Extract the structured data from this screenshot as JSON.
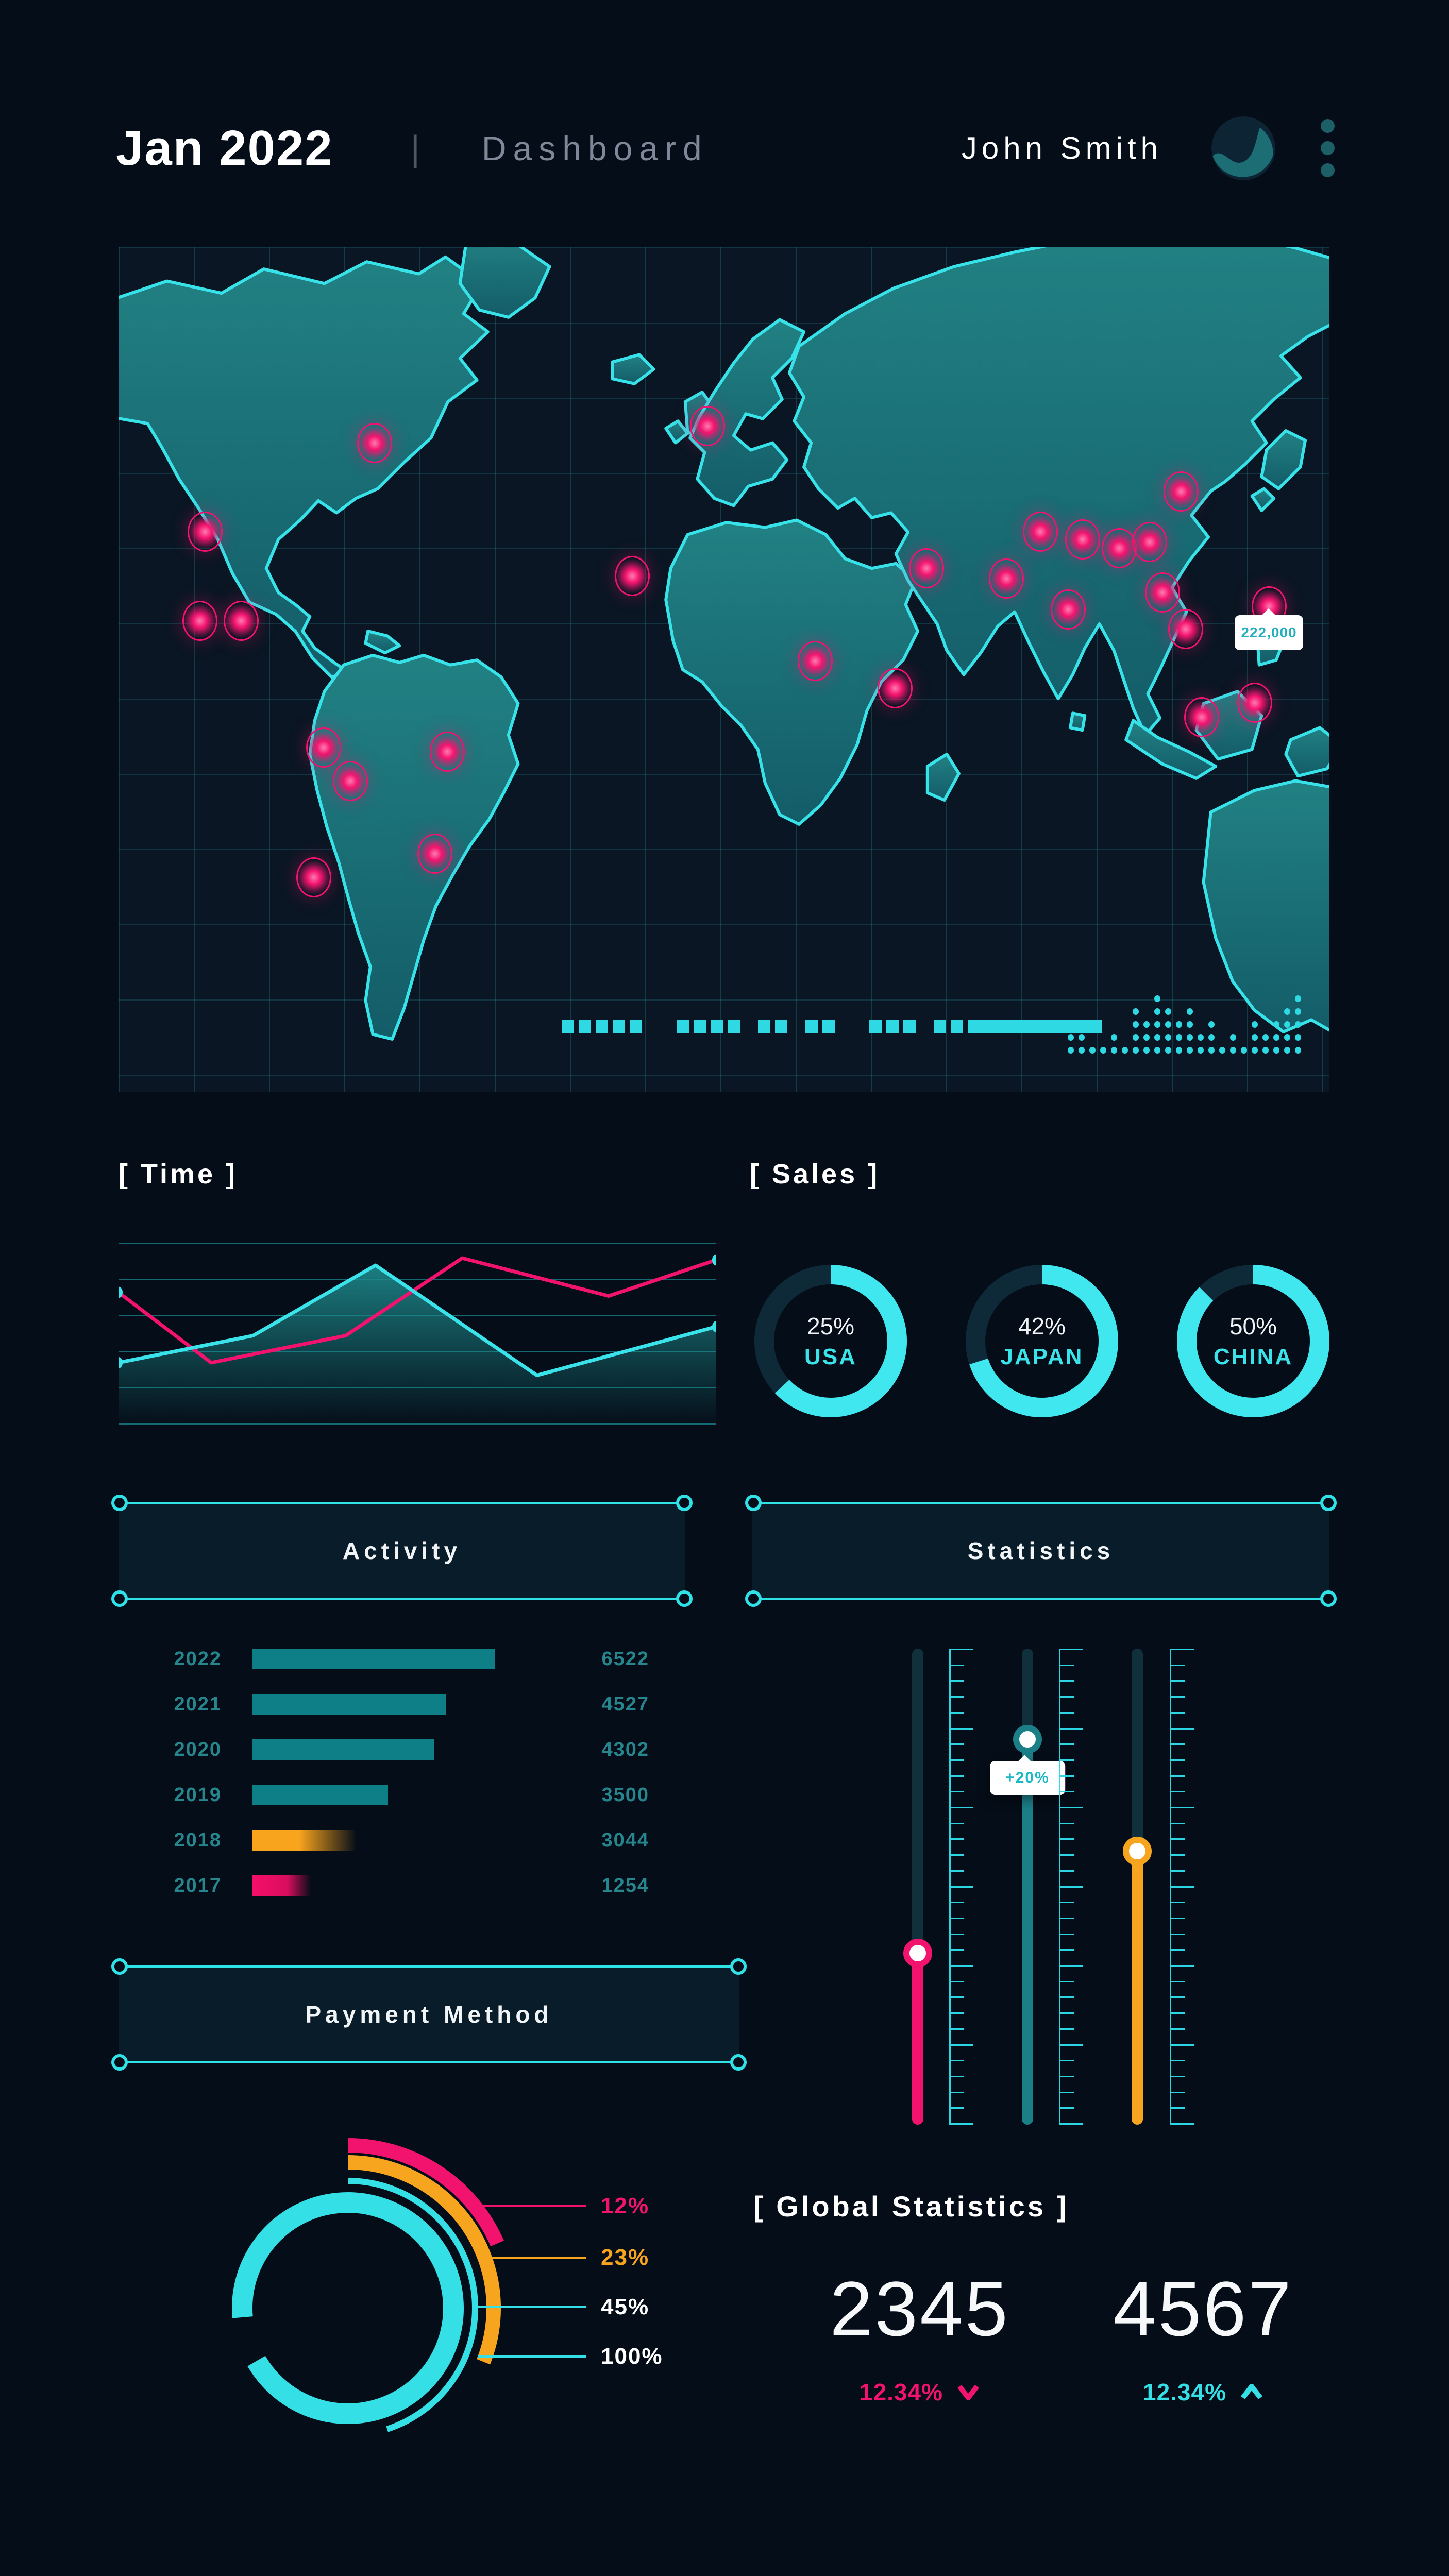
{
  "header": {
    "title": "Jan 2022",
    "divider": "|",
    "subtitle": "Dashboard",
    "user_name": "John Smith"
  },
  "sections": {
    "time": "[ Time ]",
    "sales": "[ Sales ]",
    "activity": "Activity",
    "statistics": "Statistics",
    "payment": "Payment Method",
    "global": "[ Global Statistics ]"
  },
  "map": {
    "tooltip_value": "222,000",
    "markers": [
      {
        "x": 21,
        "y": 23
      },
      {
        "x": 7,
        "y": 33.5
      },
      {
        "x": 6.6,
        "y": 44
      },
      {
        "x": 10,
        "y": 44
      },
      {
        "x": 16.8,
        "y": 59
      },
      {
        "x": 19,
        "y": 63
      },
      {
        "x": 27,
        "y": 59.5
      },
      {
        "x": 26,
        "y": 71.6
      },
      {
        "x": 16,
        "y": 74.4
      },
      {
        "x": 48.5,
        "y": 21
      },
      {
        "x": 42.3,
        "y": 38.7
      },
      {
        "x": 57.4,
        "y": 48.8
      },
      {
        "x": 64,
        "y": 52
      },
      {
        "x": 66.6,
        "y": 37.8
      },
      {
        "x": 73.2,
        "y": 39
      },
      {
        "x": 78.3,
        "y": 42.7
      },
      {
        "x": 76,
        "y": 33.5
      },
      {
        "x": 79.5,
        "y": 34.4
      },
      {
        "x": 82.5,
        "y": 35.4
      },
      {
        "x": 85,
        "y": 34.7
      },
      {
        "x": 87.6,
        "y": 28.7
      },
      {
        "x": 86.1,
        "y": 40.7
      },
      {
        "x": 88,
        "y": 45
      },
      {
        "x": 89.3,
        "y": 55.4
      },
      {
        "x": 93.7,
        "y": 53.7
      },
      {
        "x": 94.9,
        "y": 42.3
      }
    ],
    "equalizer": [
      3,
      2,
      1,
      1,
      2,
      1,
      4,
      3,
      5,
      4,
      3,
      4,
      2,
      3,
      1,
      2,
      1,
      3,
      2,
      3,
      4,
      5
    ],
    "dash_pattern": [
      "d",
      "d",
      "d",
      "d",
      "d",
      "G",
      "d",
      "d",
      "d",
      "d",
      "g",
      "d",
      "d",
      "g",
      "d",
      "d",
      "G",
      "d",
      "d",
      "d",
      "g",
      "d",
      "d",
      "B"
    ]
  },
  "chart_data": [
    {
      "type": "line",
      "title": "Time",
      "gridlines": 6,
      "legend_position": "none",
      "note": "points are [x_pct, y_pct_from_top] of plot area",
      "series": [
        {
          "name": "pink-line",
          "color": "#f2136e",
          "points": [
            [
              0,
              27
            ],
            [
              15.5,
              66
            ],
            [
              38,
              51
            ],
            [
              57.5,
              8
            ],
            [
              82,
              29
            ],
            [
              100,
              9
            ]
          ]
        },
        {
          "name": "cyan-area-line",
          "color": "#3ae3ea",
          "area": true,
          "points": [
            [
              0,
              66
            ],
            [
              22.5,
              51
            ],
            [
              43,
              12
            ],
            [
              70,
              73
            ],
            [
              100,
              46
            ]
          ]
        }
      ]
    },
    {
      "type": "pie",
      "title": "Sales",
      "items": [
        {
          "label": "USA",
          "pct_label": "25%",
          "value_pct": 25,
          "sweep_pct": 63
        },
        {
          "label": "JAPAN",
          "pct_label": "42%",
          "value_pct": 42,
          "sweep_pct": 70
        },
        {
          "label": "CHINA",
          "pct_label": "50%",
          "value_pct": 50,
          "sweep_pct": 87.5
        }
      ]
    },
    {
      "type": "bar",
      "title": "Activity",
      "rows": [
        {
          "year": "2022",
          "value": "6522",
          "width_pct": 100,
          "color": "teal"
        },
        {
          "year": "2021",
          "value": "4527",
          "width_pct": 80,
          "color": "teal"
        },
        {
          "year": "2020",
          "value": "4302",
          "width_pct": 75,
          "color": "teal"
        },
        {
          "year": "2019",
          "value": "3500",
          "width_pct": 56,
          "color": "teal"
        },
        {
          "year": "2018",
          "value": "3044",
          "width_pct": 43,
          "color": "orange"
        },
        {
          "year": "2017",
          "value": "1254",
          "width_pct": 24,
          "color": "pink"
        }
      ]
    },
    {
      "type": "slider",
      "title": "Statistics",
      "sliders": [
        {
          "name": "pink-slider",
          "color": "#f2136e",
          "handle_pct": 64,
          "tooltip": null
        },
        {
          "name": "teal-slider",
          "color": "#1b7f87",
          "handle_pct": 19,
          "tooltip": "+20%"
        },
        {
          "name": "orange-slider",
          "color": "#f7a41f",
          "handle_pct": 42.5,
          "tooltip": null
        }
      ]
    },
    {
      "type": "pie",
      "title": "Payment Method",
      "rings": [
        {
          "label": "12%",
          "color": "#f2136e",
          "r": 316,
          "w": 28,
          "sweep_pct": 18.5,
          "start_deg": -90,
          "text_color": "#f2136e"
        },
        {
          "label": "23%",
          "color": "#f7a41f",
          "r": 283,
          "w": 28,
          "sweep_pct": 31,
          "start_deg": -90,
          "text_color": "#f7a41f"
        },
        {
          "label": "45%",
          "color": "#35dfe6",
          "r": 247,
          "w": 12,
          "sweep_pct": 45,
          "start_deg": -90,
          "text_color": "#ffffff"
        },
        {
          "label": "100%",
          "color": "#35dfe6",
          "r": 205,
          "w": 40,
          "sweep_pct": 93,
          "start_deg": 175,
          "text_color": "#ffffff"
        }
      ]
    },
    {
      "type": "table",
      "title": "Global Statistics",
      "items": [
        {
          "value": "2345",
          "delta": "12.34%",
          "direction": "down",
          "color": "#f2136e"
        },
        {
          "value": "4567",
          "delta": "12.34%",
          "direction": "up",
          "color": "#35dfe6"
        }
      ]
    }
  ],
  "colors": {
    "bg": "#050d18",
    "panel": "#081c29",
    "cyan": "#35e2ea",
    "teal_bar": "#0e7e87",
    "teal_text": "#25868e",
    "pink": "#f2136e",
    "orange": "#f7a41f",
    "muted": "#7e8898",
    "land": "#1a7379",
    "outline": "#38e2e9"
  }
}
